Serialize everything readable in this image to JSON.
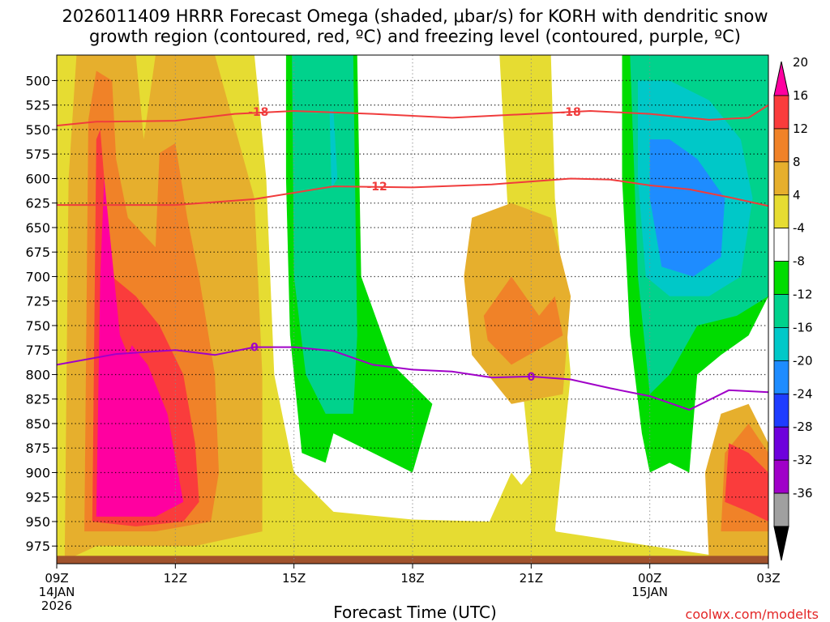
{
  "title_line1": "2026011409 HRRR Forecast Omega (shaded, μbar/s) for KORH with dendritic snow",
  "title_line2": "growth region (contoured, red, ºC) and freezing level (contoured, purple, ºC)",
  "xlabel": "Forecast Time (UTC)",
  "credit": "coolwx.com/modelts",
  "chart_data": {
    "type": "heatmap",
    "x_ticks": [
      {
        "hour": 0,
        "label": "09Z",
        "sub1": "14JAN",
        "sub2": "2026"
      },
      {
        "hour": 3,
        "label": "12Z",
        "sub1": "",
        "sub2": ""
      },
      {
        "hour": 6,
        "label": "15Z",
        "sub1": "",
        "sub2": ""
      },
      {
        "hour": 9,
        "label": "18Z",
        "sub1": "",
        "sub2": ""
      },
      {
        "hour": 12,
        "label": "21Z",
        "sub1": "",
        "sub2": ""
      },
      {
        "hour": 15,
        "label": "00Z",
        "sub1": "15JAN",
        "sub2": ""
      },
      {
        "hour": 18,
        "label": "03Z",
        "sub1": "",
        "sub2": ""
      }
    ],
    "y_ticks": [
      500,
      525,
      550,
      575,
      600,
      625,
      650,
      675,
      700,
      725,
      750,
      775,
      800,
      825,
      850,
      875,
      900,
      925,
      950,
      975
    ],
    "xlim": [
      0,
      18
    ],
    "ylim": [
      474,
      993
    ],
    "colorbar": {
      "levels": [
        -36,
        -32,
        -28,
        -24,
        -20,
        -16,
        -12,
        -8,
        -4,
        4,
        8,
        12,
        16,
        20
      ],
      "bands": [
        {
          "color": "#ff00a0",
          "label": "20"
        },
        {
          "color": "#fa3c3c",
          "label": "16"
        },
        {
          "color": "#f08228",
          "label": "12"
        },
        {
          "color": "#e6af2d",
          "label": "8"
        },
        {
          "color": "#e6dc32",
          "label": "4"
        },
        {
          "color": "#ffffff",
          "label": "-4"
        },
        {
          "color": "#00dc00",
          "label": "-8"
        },
        {
          "color": "#00d28c",
          "label": "-12"
        },
        {
          "color": "#00c8c8",
          "label": "-16"
        },
        {
          "color": "#1e8cff",
          "label": "-20"
        },
        {
          "color": "#1e3cff",
          "label": "-24"
        },
        {
          "color": "#6e00dc",
          "label": "-28"
        },
        {
          "color": "#a000c8",
          "label": "-32"
        },
        {
          "color": "#a0a0a0",
          "label": "-36"
        },
        {
          "color": "#000000",
          "label": ""
        }
      ]
    },
    "contours": [
      {
        "name": "-18C",
        "label": "-18",
        "color": "#f03c3c",
        "points": [
          [
            0,
            546
          ],
          [
            1,
            542
          ],
          [
            3,
            541
          ],
          [
            4.5,
            534
          ],
          [
            6,
            531
          ],
          [
            8,
            534
          ],
          [
            10,
            538
          ],
          [
            12,
            534
          ],
          [
            13.5,
            531
          ],
          [
            15,
            534
          ],
          [
            16.5,
            540
          ],
          [
            17.5,
            538
          ],
          [
            18,
            525
          ]
        ]
      },
      {
        "name": "-12C",
        "label": "-12",
        "color": "#f03c3c",
        "points": [
          [
            0,
            627
          ],
          [
            2,
            627
          ],
          [
            3,
            627
          ],
          [
            5,
            621
          ],
          [
            7,
            608
          ],
          [
            9,
            609
          ],
          [
            11,
            606
          ],
          [
            13,
            600
          ],
          [
            14,
            601
          ],
          [
            15,
            607
          ],
          [
            16,
            611
          ],
          [
            17,
            619
          ],
          [
            18,
            628
          ]
        ]
      },
      {
        "name": "0C",
        "label": "0",
        "color": "#a000c8",
        "points": [
          [
            0,
            790
          ],
          [
            1.5,
            779
          ],
          [
            3,
            775
          ],
          [
            4,
            780
          ],
          [
            5,
            772
          ],
          [
            6,
            772
          ],
          [
            7,
            776
          ],
          [
            8,
            790
          ],
          [
            9,
            795
          ],
          [
            10,
            797
          ],
          [
            11,
            803
          ],
          [
            12,
            802
          ],
          [
            13,
            805
          ],
          [
            14,
            814
          ],
          [
            15,
            822
          ],
          [
            16,
            836
          ],
          [
            17,
            816
          ],
          [
            18,
            818
          ]
        ]
      }
    ],
    "contour_labels": [
      {
        "contour": "-18C",
        "text": "-18",
        "hour": 5.1,
        "p": 532
      },
      {
        "contour": "-18C",
        "text": "-18",
        "hour": 13.0,
        "p": 532
      },
      {
        "contour": "-12C",
        "text": "-12",
        "hour": 8.1,
        "p": 608
      },
      {
        "contour": "0C",
        "text": "0",
        "hour": 5.0,
        "p": 772
      },
      {
        "contour": "0C",
        "text": "0",
        "hour": 12.0,
        "p": 802
      }
    ],
    "shaded_regions": [
      {
        "level": 4,
        "color": "#e6dc32",
        "points": [
          [
            0,
            993
          ],
          [
            0,
            474
          ],
          [
            5,
            474
          ],
          [
            5.3,
            600
          ],
          [
            5.5,
            800
          ],
          [
            6,
            900
          ],
          [
            7,
            940
          ],
          [
            9,
            948
          ],
          [
            11,
            950
          ],
          [
            12,
            900
          ],
          [
            11.5,
            700
          ],
          [
            11.2,
            474
          ],
          [
            12.5,
            474
          ],
          [
            12.6,
            620
          ],
          [
            13,
            800
          ],
          [
            12.6,
            960
          ],
          [
            18,
            993
          ]
        ]
      },
      {
        "level": 4,
        "color": "#e6dc32",
        "points": [
          [
            10.5,
            990
          ],
          [
            11.5,
            900
          ],
          [
            12.5,
            950
          ],
          [
            13,
            990
          ]
        ]
      },
      {
        "level": 8,
        "color": "#e6af2d",
        "points": [
          [
            0.2,
            990
          ],
          [
            0.3,
            600
          ],
          [
            0.5,
            474
          ],
          [
            2.0,
            474
          ],
          [
            2.2,
            560
          ],
          [
            2.5,
            474
          ],
          [
            4.0,
            474
          ],
          [
            5.0,
            620
          ],
          [
            5.2,
            800
          ],
          [
            5.2,
            960
          ],
          [
            3.5,
            975
          ],
          [
            1,
            975
          ]
        ]
      },
      {
        "level": 8,
        "color": "#e6af2d",
        "points": [
          [
            10.5,
            640
          ],
          [
            11.5,
            625
          ],
          [
            12.5,
            640
          ],
          [
            13,
            720
          ],
          [
            12.8,
            820
          ],
          [
            11.5,
            830
          ],
          [
            10.5,
            780
          ],
          [
            10.3,
            700
          ]
        ]
      },
      {
        "level": 8,
        "color": "#e6af2d",
        "points": [
          [
            16.5,
            993
          ],
          [
            16.4,
            900
          ],
          [
            16.8,
            840
          ],
          [
            17.5,
            830
          ],
          [
            18,
            870
          ],
          [
            18,
            993
          ]
        ]
      },
      {
        "level": 12,
        "color": "#f08228",
        "points": [
          [
            0.7,
            960
          ],
          [
            0.8,
            540
          ],
          [
            1.0,
            490
          ],
          [
            1.4,
            500
          ],
          [
            1.5,
            580
          ],
          [
            1.8,
            640
          ],
          [
            2.5,
            670
          ],
          [
            2.6,
            574
          ],
          [
            3.0,
            564
          ],
          [
            3.3,
            640
          ],
          [
            3.6,
            700
          ],
          [
            4.0,
            800
          ],
          [
            4.1,
            900
          ],
          [
            3.9,
            950
          ],
          [
            2.5,
            960
          ]
        ]
      },
      {
        "level": 12,
        "color": "#f08228",
        "points": [
          [
            10.8,
            740
          ],
          [
            11.5,
            700
          ],
          [
            12.2,
            740
          ],
          [
            12.6,
            720
          ],
          [
            12.8,
            760
          ],
          [
            11.5,
            790
          ],
          [
            10.9,
            765
          ]
        ]
      },
      {
        "level": 12,
        "color": "#f08228",
        "points": [
          [
            16.8,
            960
          ],
          [
            16.9,
            880
          ],
          [
            17.5,
            850
          ],
          [
            18,
            880
          ],
          [
            18,
            960
          ]
        ]
      },
      {
        "level": 16,
        "color": "#fa3c3c",
        "points": [
          [
            0.9,
            950
          ],
          [
            1.0,
            560
          ],
          [
            1.1,
            550
          ],
          [
            1.4,
            700
          ],
          [
            2.0,
            720
          ],
          [
            2.6,
            750
          ],
          [
            3.2,
            800
          ],
          [
            3.5,
            870
          ],
          [
            3.6,
            930
          ],
          [
            3.2,
            950
          ],
          [
            2,
            955
          ]
        ]
      },
      {
        "level": 16,
        "color": "#fa3c3c",
        "points": [
          [
            16.9,
            930
          ],
          [
            17.0,
            870
          ],
          [
            17.5,
            880
          ],
          [
            18,
            900
          ],
          [
            18,
            950
          ],
          [
            17.5,
            940
          ]
        ]
      },
      {
        "level": 20,
        "color": "#ff00a0",
        "points": [
          [
            1.0,
            945
          ],
          [
            1.1,
            700
          ],
          [
            1.2,
            600
          ],
          [
            1.3,
            640
          ],
          [
            1.6,
            760
          ],
          [
            1.8,
            780
          ],
          [
            1.9,
            770
          ],
          [
            2.3,
            790
          ],
          [
            2.8,
            840
          ],
          [
            3.2,
            930
          ],
          [
            2.5,
            945
          ],
          [
            1.5,
            945
          ]
        ]
      },
      {
        "level": -4,
        "color": "#00dc00",
        "points": [
          [
            5.8,
            474
          ],
          [
            7.6,
            474
          ],
          [
            7.7,
            700
          ],
          [
            8.5,
            790
          ],
          [
            9.5,
            830
          ],
          [
            9.0,
            900
          ],
          [
            8.0,
            880
          ],
          [
            7.0,
            860
          ],
          [
            6.8,
            890
          ],
          [
            6.2,
            880
          ],
          [
            5.9,
            760
          ],
          [
            5.8,
            600
          ]
        ]
      },
      {
        "level": -4,
        "color": "#00dc00",
        "points": [
          [
            14.3,
            474
          ],
          [
            18,
            474
          ],
          [
            18,
            720
          ],
          [
            17.5,
            760
          ],
          [
            16.8,
            780
          ],
          [
            16.2,
            800
          ],
          [
            16.0,
            900
          ],
          [
            15.5,
            890
          ],
          [
            15.0,
            900
          ],
          [
            14.8,
            860
          ],
          [
            14.5,
            760
          ],
          [
            14.3,
            600
          ]
        ]
      },
      {
        "level": -8,
        "color": "#00d28c",
        "points": [
          [
            5.95,
            474
          ],
          [
            7.5,
            474
          ],
          [
            7.6,
            760
          ],
          [
            7.5,
            840
          ],
          [
            6.8,
            840
          ],
          [
            6.3,
            800
          ],
          [
            6.0,
            700
          ]
        ]
      },
      {
        "level": -8,
        "color": "#00d28c",
        "points": [
          [
            14.5,
            474
          ],
          [
            18,
            474
          ],
          [
            18,
            720
          ],
          [
            17.2,
            740
          ],
          [
            16.2,
            750
          ],
          [
            15.5,
            800
          ],
          [
            15.0,
            820
          ],
          [
            14.7,
            700
          ]
        ]
      },
      {
        "level": -12,
        "color": "#00c8c8",
        "points": [
          [
            6.9,
            530
          ],
          [
            7.0,
            530
          ],
          [
            7.1,
            600
          ],
          [
            6.95,
            610
          ]
        ]
      },
      {
        "level": -12,
        "color": "#00c8c8",
        "points": [
          [
            14.7,
            500
          ],
          [
            15.5,
            500
          ],
          [
            16.5,
            520
          ],
          [
            17.3,
            560
          ],
          [
            17.6,
            620
          ],
          [
            17.3,
            700
          ],
          [
            16.5,
            720
          ],
          [
            15.5,
            720
          ],
          [
            14.9,
            700
          ],
          [
            14.7,
            600
          ]
        ]
      },
      {
        "level": -16,
        "color": "#1e8cff",
        "points": [
          [
            15.0,
            560
          ],
          [
            15.5,
            560
          ],
          [
            16.2,
            580
          ],
          [
            16.9,
            620
          ],
          [
            16.8,
            680
          ],
          [
            16.1,
            700
          ],
          [
            15.3,
            690
          ],
          [
            15.0,
            620
          ]
        ]
      }
    ],
    "ground": {
      "color": "#a0522d",
      "from_p": 985,
      "to_p": 993
    }
  }
}
